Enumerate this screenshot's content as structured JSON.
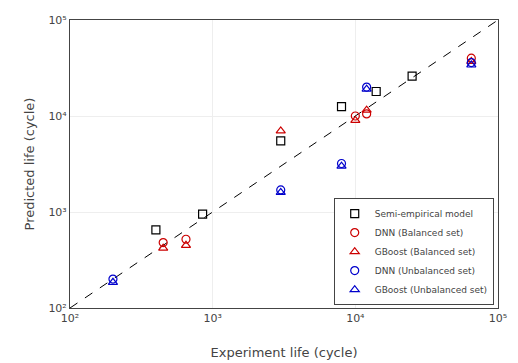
{
  "chart_data": {
    "type": "scatter",
    "xlabel": "Experiment life (cycle)",
    "ylabel": "Predicted life (cycle)",
    "log": true,
    "xlim": [
      100,
      100000
    ],
    "ylim": [
      100,
      100000
    ],
    "xticks": [
      {
        "value": 100,
        "label": "10²"
      },
      {
        "value": 1000,
        "label": "10³"
      },
      {
        "value": 10000,
        "label": "10⁴"
      },
      {
        "value": 100000,
        "label": "10⁵"
      }
    ],
    "yticks": [
      {
        "value": 100,
        "label": "10²"
      },
      {
        "value": 1000,
        "label": "10³"
      },
      {
        "value": 10000,
        "label": "10⁴"
      },
      {
        "value": 100000,
        "label": "10⁵"
      }
    ],
    "grid": true,
    "legend": "lower right",
    "series": [
      {
        "name": "Semi-empirical model",
        "color": "black",
        "marker": "square",
        "x": [
          400,
          850,
          3000,
          8000,
          14000,
          25000
        ],
        "values": [
          650,
          950,
          5500,
          12500,
          18000,
          26000
        ]
      },
      {
        "name": "DNN (Balanced set)",
        "color": "#cc0000",
        "marker": "circle",
        "x": [
          450,
          650,
          10000,
          12000,
          65000
        ],
        "values": [
          480,
          520,
          10000,
          10500,
          40000
        ]
      },
      {
        "name": "GBoost (Balanced set)",
        "color": "#cc0000",
        "marker": "triangle",
        "x": [
          450,
          650,
          3000,
          10000,
          12000,
          65000
        ],
        "values": [
          420,
          450,
          7000,
          9000,
          11500,
          37000
        ]
      },
      {
        "name": "DNN (Unbalanced set)",
        "color": "#0000cc",
        "marker": "circle",
        "x": [
          200,
          3000,
          8000,
          12000,
          65000
        ],
        "values": [
          200,
          1700,
          3200,
          20000,
          36000
        ]
      },
      {
        "name": "GBoost (Unbalanced set)",
        "color": "#0000cc",
        "marker": "triangle",
        "x": [
          200,
          3000,
          8000,
          12000,
          65000
        ],
        "values": [
          185,
          1600,
          3000,
          19000,
          34000
        ]
      }
    ]
  }
}
